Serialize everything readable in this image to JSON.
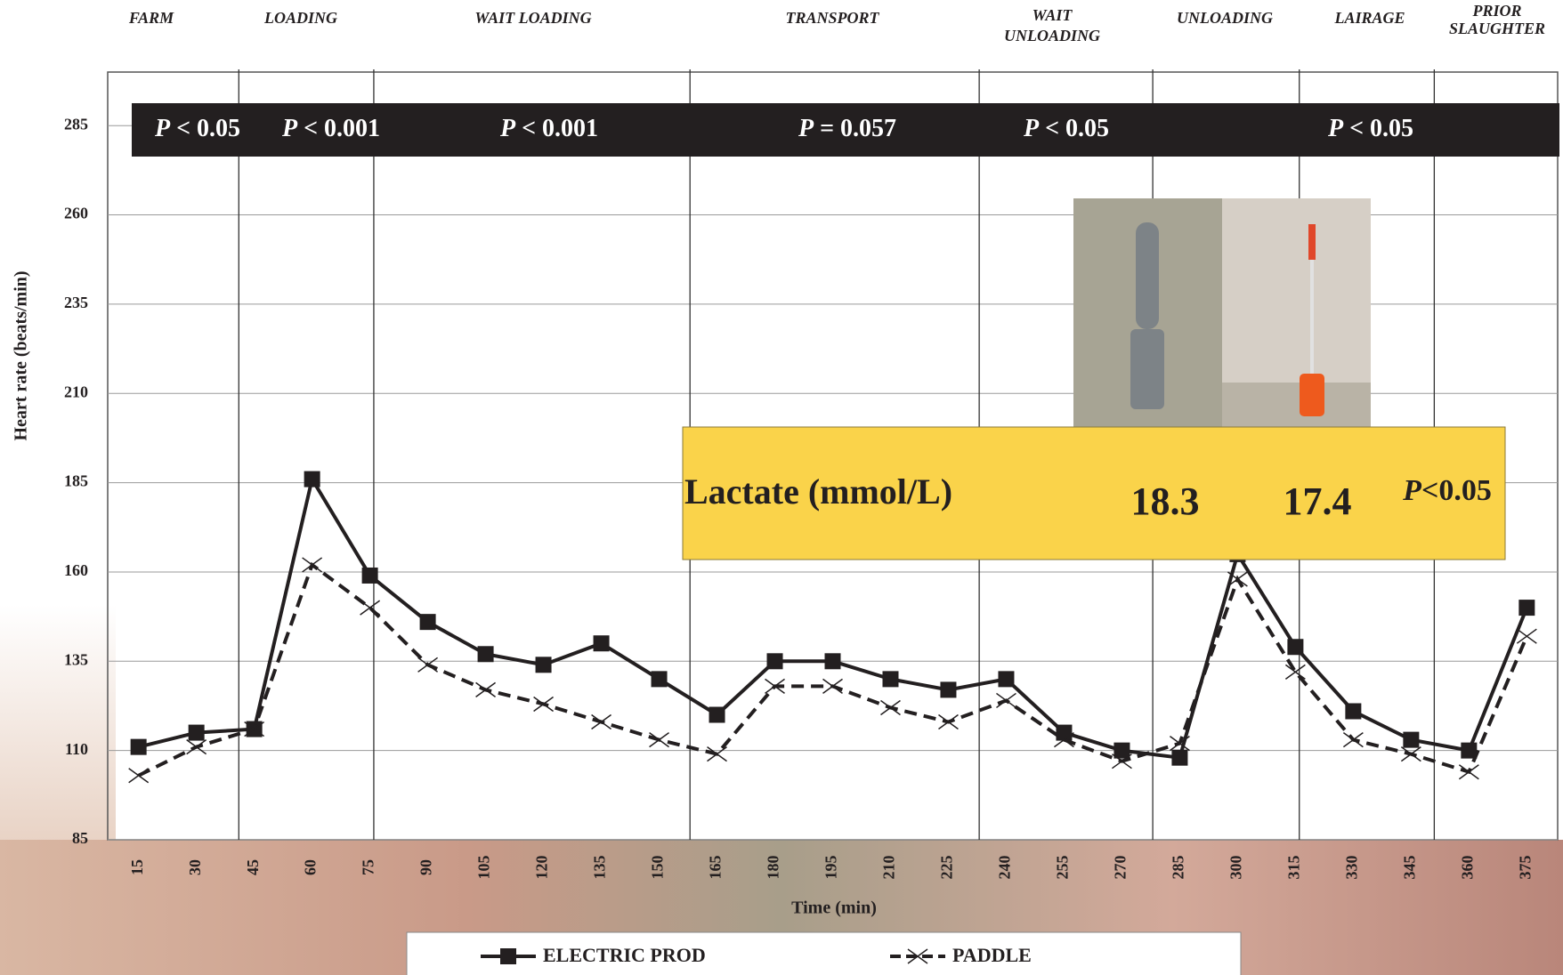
{
  "chart_data": {
    "type": "line",
    "phases": [
      [
        "FARM"
      ],
      [
        "LOADING"
      ],
      [
        "WAIT LOADING"
      ],
      [
        "TRANSPORT"
      ],
      [
        "WAIT",
        "UNLOADING"
      ],
      [
        "UNLOADING"
      ],
      [
        "LAIRAGE"
      ],
      [
        "PRIOR",
        "SLAUGHTER"
      ]
    ],
    "p_values": [
      "P < 0.05",
      "P < 0.001",
      "P < 0.001",
      "P = 0.057",
      "P < 0.05",
      "P < 0.05"
    ],
    "lactate": {
      "label": "Lactate (mmol/L)",
      "values": [
        18.3,
        17.4
      ],
      "p_value": "P<0.05"
    },
    "y_label": "Heart rate (beats/min)",
    "x_label": "Time (min)",
    "x": [
      15,
      30,
      45,
      60,
      75,
      90,
      105,
      120,
      135,
      150,
      165,
      180,
      195,
      210,
      225,
      240,
      255,
      270,
      285,
      300,
      315,
      330,
      345,
      360,
      375
    ],
    "xlim": [
      7,
      383
    ],
    "ylim": [
      85,
      300
    ],
    "yticks": [
      85,
      110,
      135,
      160,
      185,
      210,
      235,
      260,
      285
    ],
    "grid": true,
    "series": [
      {
        "name": "ELECTRIC PROD",
        "color": "#231f20",
        "marker": "square",
        "dash": false,
        "values": [
          111,
          115,
          116,
          186,
          159,
          146,
          137,
          134,
          140,
          130,
          120,
          135,
          135,
          130,
          127,
          130,
          115,
          110,
          108,
          165,
          139,
          121,
          113,
          110,
          150
        ]
      },
      {
        "name": "PADDLE",
        "color": "#231f20",
        "marker": "x",
        "dash": true,
        "values": [
          103,
          111,
          116,
          162,
          150,
          134,
          127,
          123,
          118,
          113,
          109,
          128,
          128,
          122,
          118,
          124,
          113,
          107,
          112,
          158,
          132,
          113,
          109,
          104,
          142
        ]
      }
    ]
  }
}
